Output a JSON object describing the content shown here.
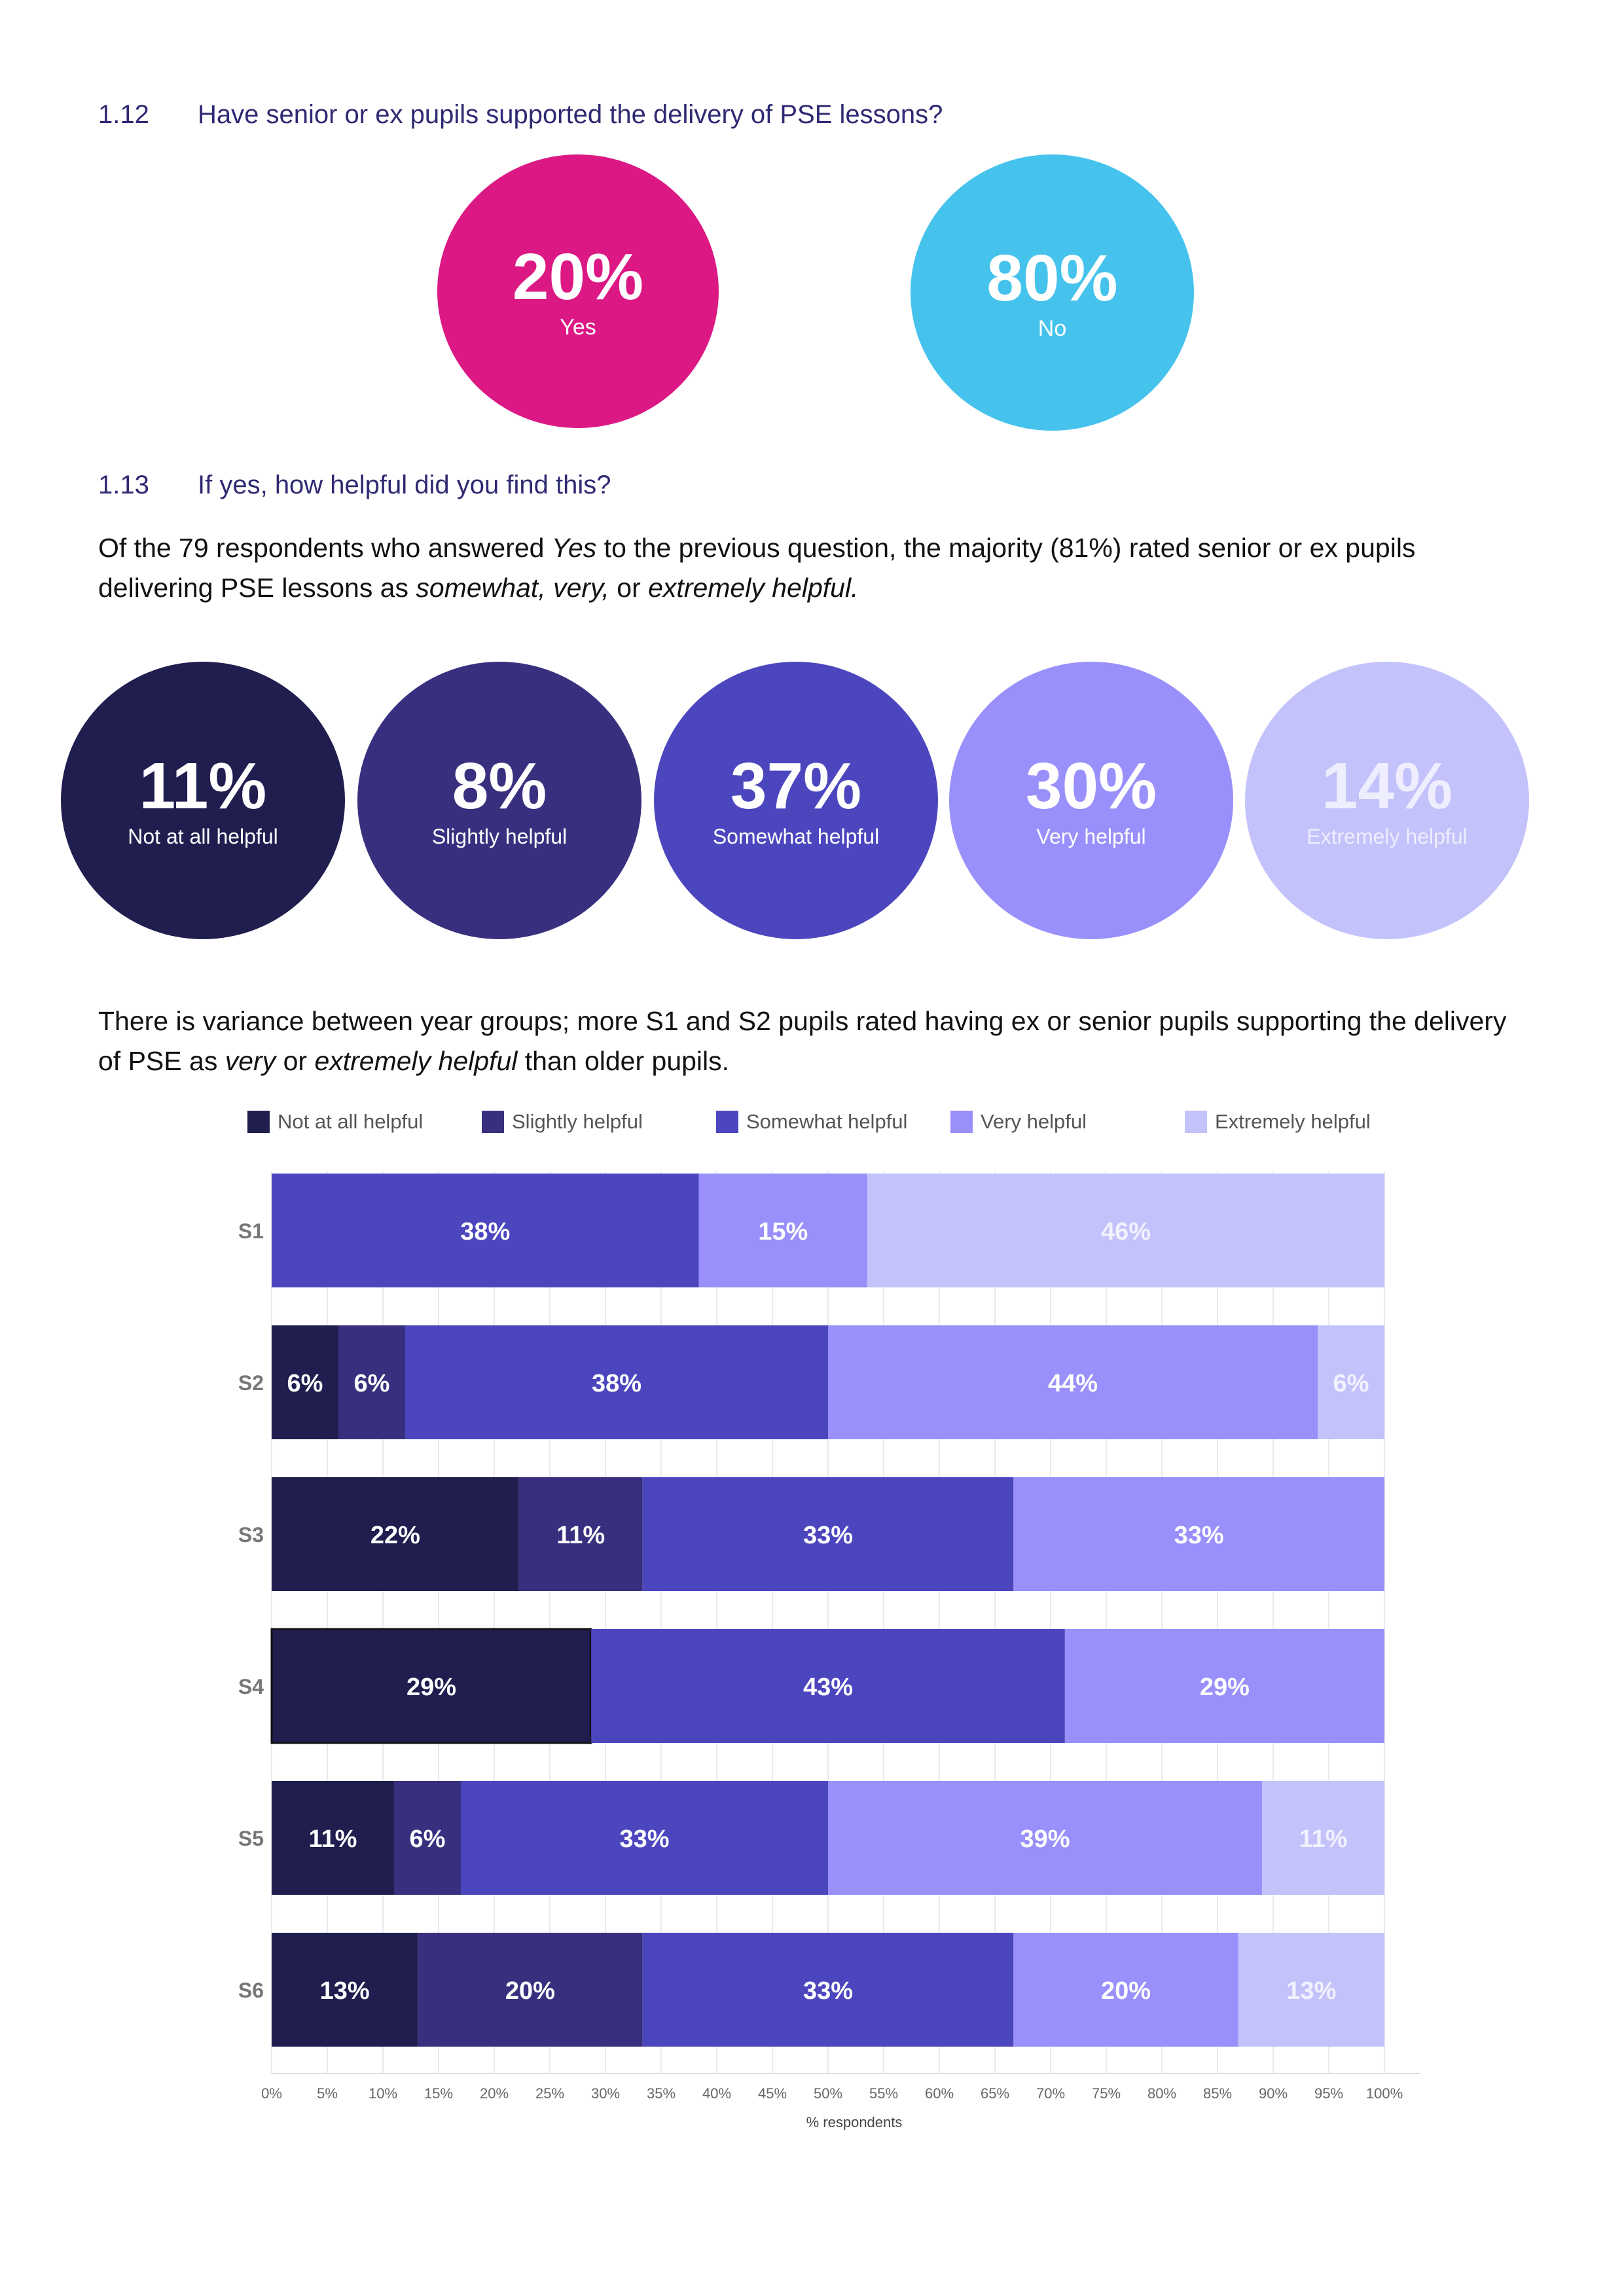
{
  "q112": {
    "number": "1.12",
    "question": "Have senior or ex pupils supported the delivery of PSE lessons?",
    "answers": [
      {
        "pct": "20%",
        "label": "Yes",
        "color": "#dc1885"
      },
      {
        "pct": "80%",
        "label": "No",
        "color": "#45c3ec"
      }
    ]
  },
  "q113": {
    "number": "1.13",
    "question": "If yes, how helpful did you find this?",
    "summary": {
      "p1": "Of the 79 respondents who answered ",
      "yes": "Yes",
      "p2": " to the previous question, the majority (81%) rated senior or ex pupils delivering PSE lessons as ",
      "opts": "somewhat, very,",
      "p3": " or ",
      "ext": "extremely helpful.",
      "p4": ""
    },
    "ratings": [
      {
        "pct": "11%",
        "label": "Not at all helpful",
        "color": "#201d4f"
      },
      {
        "pct": "8%",
        "label": "Slightly helpful",
        "color": "#38307f"
      },
      {
        "pct": "37%",
        "label": "Somewhat helpful",
        "color": "#4c46be"
      },
      {
        "pct": "30%",
        "label": "Very helpful",
        "color": "#9990fb"
      },
      {
        "pct": "14%",
        "label": "Extremely helpful",
        "color": "#c4c2fb"
      }
    ]
  },
  "variance": {
    "p1": "There is variance between year groups; more S1 and S2 pupils rated having ex or senior pupils supporting the delivery of PSE as ",
    "very": "very",
    "p2": " or ",
    "ext": "extremely helpful",
    "p3": " than older pupils."
  },
  "chart_data": {
    "type": "bar",
    "orientation": "horizontal-stacked-100",
    "categories": [
      "S1",
      "S2",
      "S3",
      "S4",
      "S5",
      "S6"
    ],
    "series": [
      {
        "name": "Not at all helpful",
        "color": "#201d4f",
        "values": [
          0,
          6,
          22,
          29,
          11,
          13
        ]
      },
      {
        "name": "Slightly helpful",
        "color": "#38307f",
        "values": [
          0,
          6,
          11,
          0,
          6,
          20
        ]
      },
      {
        "name": "Somewhat helpful",
        "color": "#4c46be",
        "values": [
          38,
          38,
          33,
          43,
          33,
          33
        ]
      },
      {
        "name": "Very helpful",
        "color": "#9990fb",
        "values": [
          15,
          44,
          33,
          29,
          39,
          20
        ]
      },
      {
        "name": "Extremely helpful",
        "color": "#c4c2fb",
        "values": [
          46,
          6,
          0,
          0,
          11,
          13
        ]
      }
    ],
    "xlabel": "% respondents",
    "xlim": [
      0,
      100
    ],
    "xticks": [
      "0%",
      "5%",
      "10%",
      "15%",
      "20%",
      "25%",
      "30%",
      "35%",
      "40%",
      "45%",
      "50%",
      "55%",
      "60%",
      "65%",
      "70%",
      "75%",
      "80%",
      "85%",
      "90%",
      "95%",
      "100%"
    ],
    "legend": "top"
  }
}
